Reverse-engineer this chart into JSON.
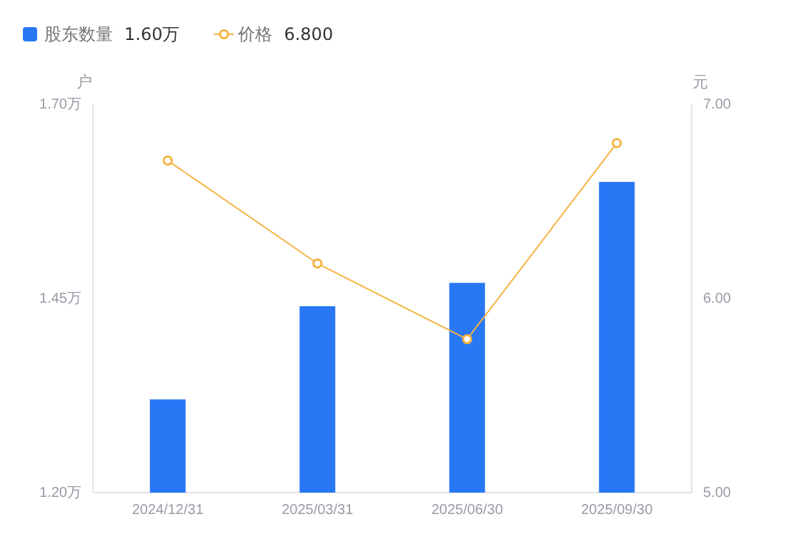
{
  "chart_data": {
    "type": "bar",
    "categories": [
      "2024/12/31",
      "2025/03/31",
      "2025/06/30",
      "2025/09/30"
    ],
    "series": [
      {
        "name": "股东数量",
        "color": "#2878f6",
        "values": [
          1.32,
          1.44,
          1.47,
          1.6
        ]
      },
      {
        "name": "价格",
        "type": "line",
        "axis": "y2",
        "color": "#f5b342",
        "values": [
          6.71,
          6.18,
          5.79,
          6.8
        ]
      }
    ],
    "ylabel": "户",
    "y2label": "元",
    "ylim": [
      1.2,
      1.7
    ],
    "yticks": [
      {
        "value": 1.2,
        "label": "1.20万"
      },
      {
        "value": 1.45,
        "label": "1.45万"
      },
      {
        "value": 1.7,
        "label": "1.70万"
      }
    ],
    "y2lim": [
      5,
      7
    ],
    "y2ticks": [
      {
        "value": 5,
        "label": "5.00"
      },
      {
        "value": 6,
        "label": "6.00"
      },
      {
        "value": 7,
        "label": "7.00"
      }
    ],
    "annotations": [
      "1.60万",
      "6.800"
    ],
    "legend": "top left",
    "marker": "circle",
    "line_style": "solid"
  }
}
